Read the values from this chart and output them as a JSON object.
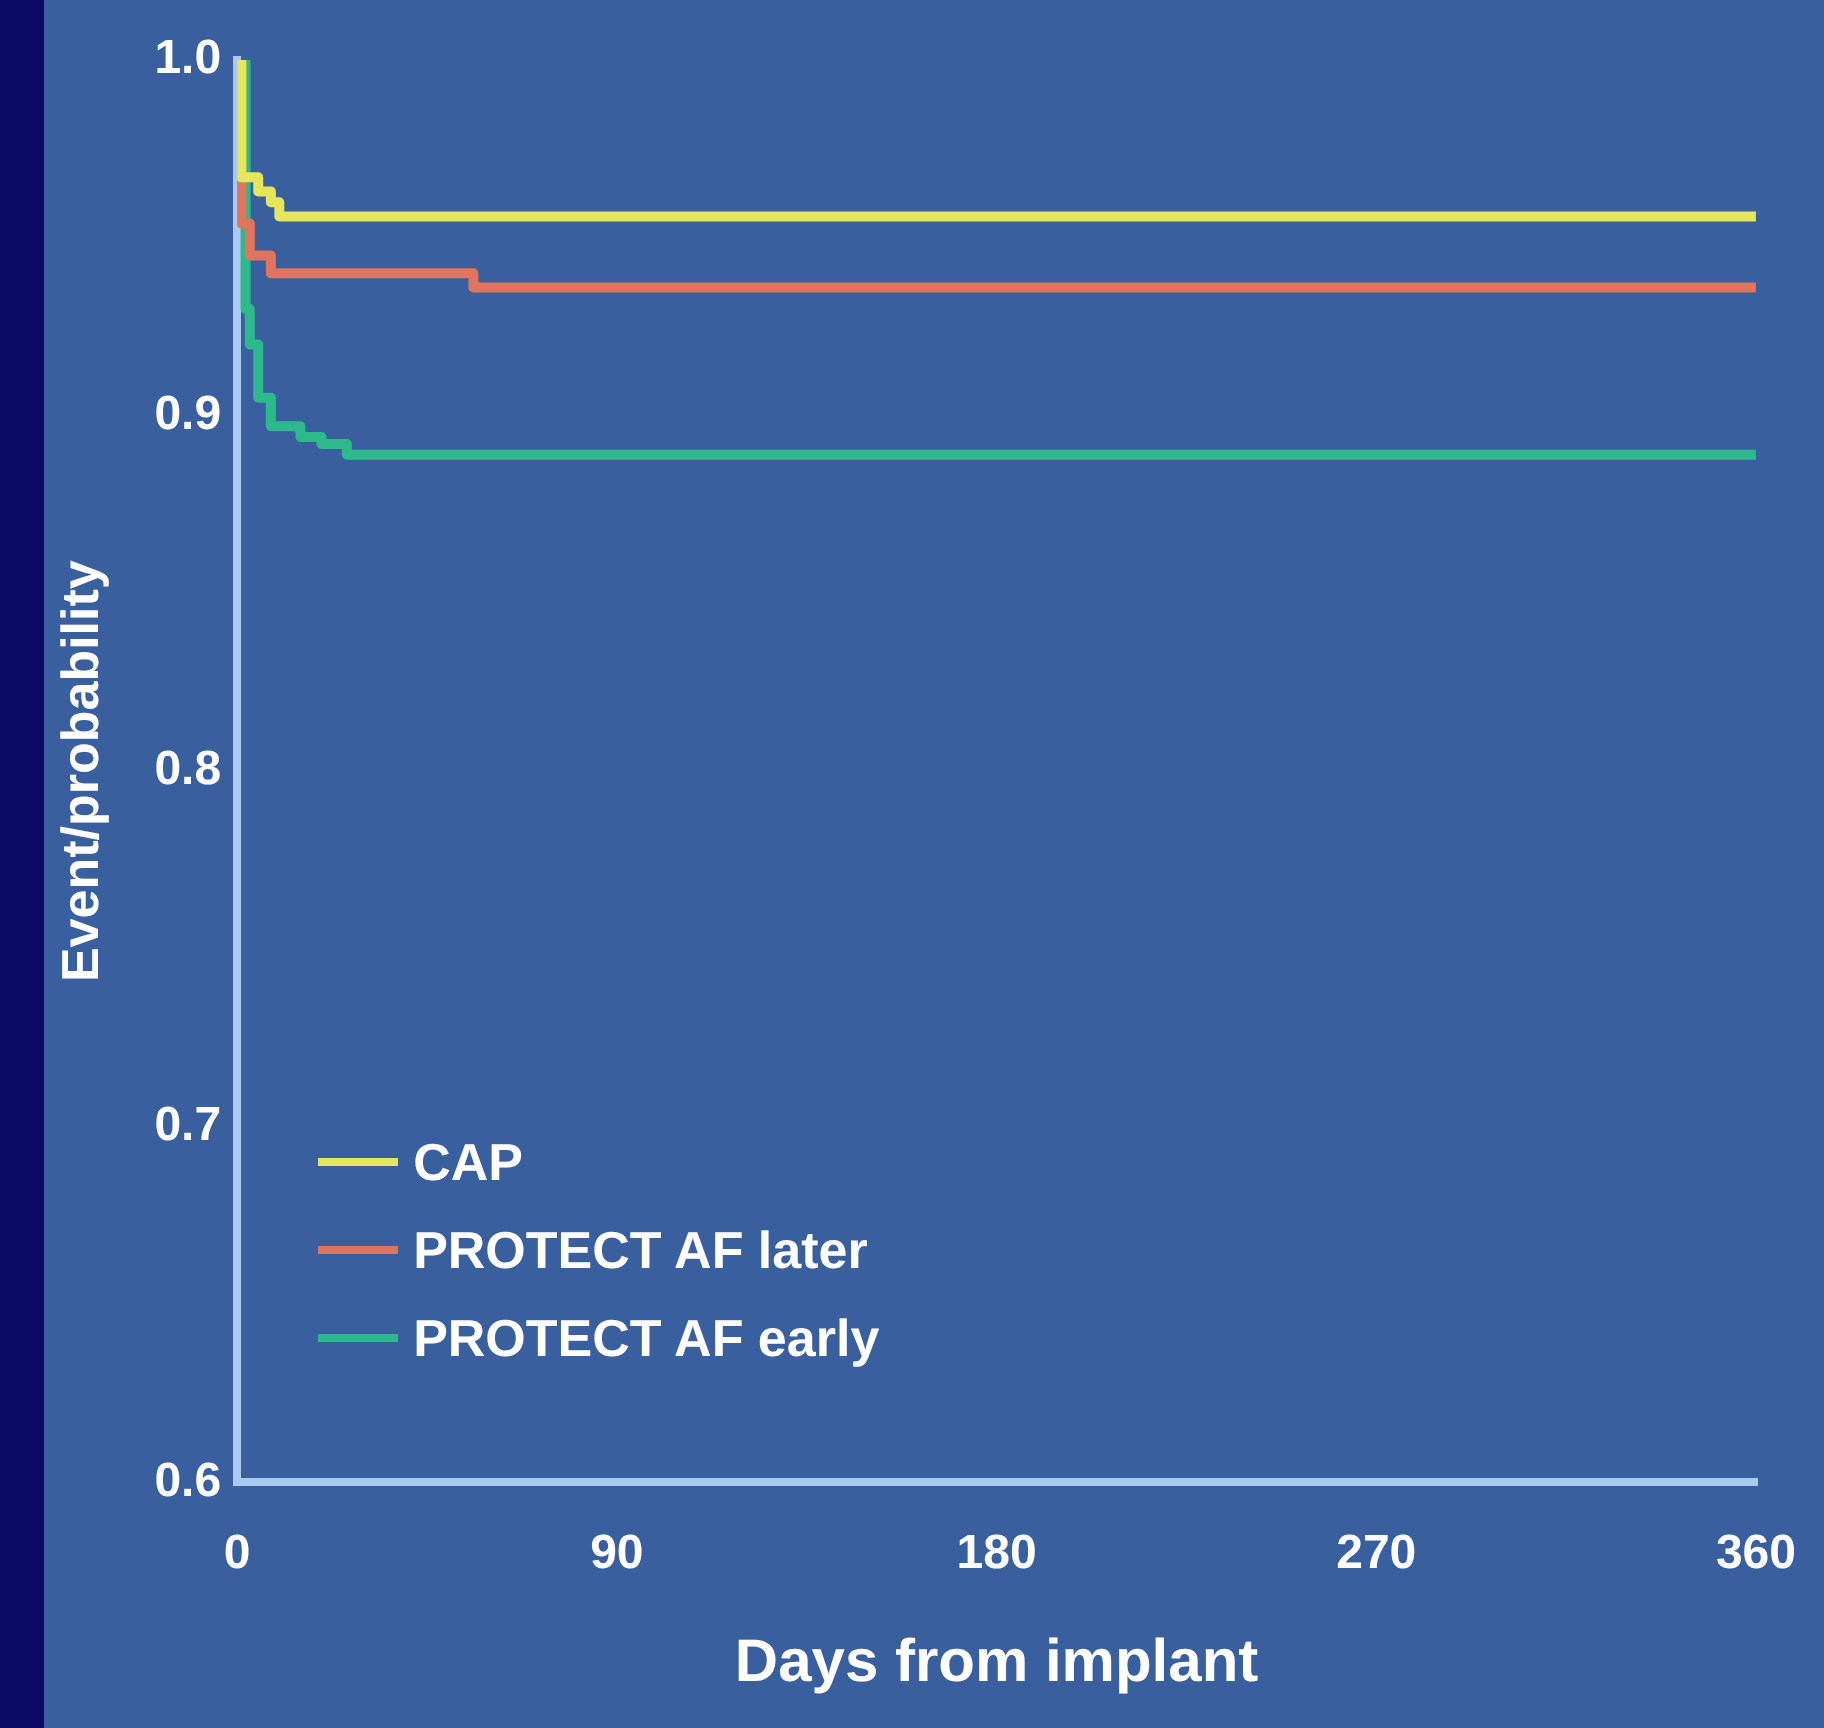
{
  "chart_data": {
    "type": "step",
    "xlabel": "Days from implant",
    "ylabel": "Event/probability",
    "xlim": [
      0,
      360
    ],
    "xticks": [
      0,
      90,
      180,
      270,
      360
    ],
    "ylim": [
      0.6,
      1.0
    ],
    "yticks": [
      {
        "value": 0.6,
        "label": "0.6"
      },
      {
        "value": 0.7,
        "label": "0.7"
      },
      {
        "value": 0.8,
        "label": "0.8"
      },
      {
        "value": 0.9,
        "label": "0.9"
      },
      {
        "value": 1.0,
        "label": "1.0"
      }
    ],
    "grid": false,
    "legend": "bottom left",
    "marker": "none",
    "line_style": "solid",
    "series": [
      {
        "name": "CAP",
        "color": "#e6e65c",
        "x": [
          0,
          1,
          5,
          8,
          10,
          360
        ],
        "values": [
          1.0,
          0.967,
          0.963,
          0.96,
          0.956,
          0.956
        ]
      },
      {
        "name": "PROTECT AF later",
        "color": "#e0745c",
        "x": [
          0,
          1,
          3,
          8,
          56,
          360
        ],
        "values": [
          1.0,
          0.954,
          0.945,
          0.94,
          0.936,
          0.936
        ]
      },
      {
        "name": "PROTECT AF early",
        "color": "#2db98c",
        "x": [
          0,
          2,
          3,
          5,
          8,
          15,
          20,
          26,
          360
        ],
        "values": [
          1.0,
          0.93,
          0.92,
          0.905,
          0.897,
          0.894,
          0.892,
          0.889,
          0.889
        ]
      }
    ]
  }
}
